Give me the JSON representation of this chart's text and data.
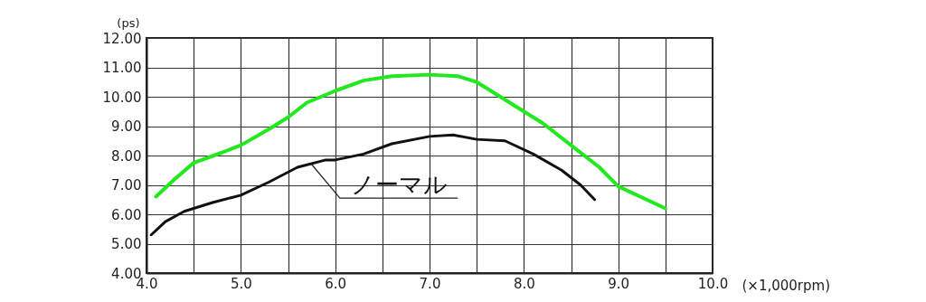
{
  "chart_data": {
    "type": "line",
    "xlabel": "(×1,000rpm)",
    "ylabel": "(ps)",
    "xlim": [
      4,
      10
    ],
    "ylim": [
      4,
      12
    ],
    "xticks": [
      {
        "value": 4,
        "label": "4.0"
      },
      {
        "value": 4.5,
        "label": null
      },
      {
        "value": 5,
        "label": "5.0"
      },
      {
        "value": 5.5,
        "label": null
      },
      {
        "value": 6,
        "label": "6.0"
      },
      {
        "value": 6.5,
        "label": null
      },
      {
        "value": 7,
        "label": "7.0"
      },
      {
        "value": 7.5,
        "label": null
      },
      {
        "value": 8,
        "label": "8.0"
      },
      {
        "value": 8.5,
        "label": null
      },
      {
        "value": 9,
        "label": "9.0"
      },
      {
        "value": 9.5,
        "label": null
      },
      {
        "value": 10,
        "label": "10.0"
      }
    ],
    "yticks": [
      {
        "value": 4,
        "label": "4.00"
      },
      {
        "value": 5,
        "label": "5.00"
      },
      {
        "value": 6,
        "label": "6.00"
      },
      {
        "value": 7,
        "label": "7.00"
      },
      {
        "value": 8,
        "label": "8.00"
      },
      {
        "value": 9,
        "label": "9.00"
      },
      {
        "value": 10,
        "label": "10.00"
      },
      {
        "value": 11,
        "label": "11.00"
      },
      {
        "value": 12,
        "label": "12.00"
      }
    ],
    "grid": true,
    "marker": "none",
    "line_style": "solid",
    "series": [
      {
        "color": "#22e81e",
        "x": [
          4.1,
          4.3,
          4.5,
          4.8,
          5.0,
          5.3,
          5.5,
          5.7,
          6.0,
          6.3,
          6.6,
          7.0,
          7.3,
          7.5,
          7.8,
          8.2,
          8.5,
          8.8,
          9.0,
          9.3,
          9.5
        ],
        "values": [
          6.6,
          7.2,
          7.75,
          8.1,
          8.35,
          8.9,
          9.3,
          9.8,
          10.2,
          10.55,
          10.7,
          10.75,
          10.7,
          10.5,
          9.9,
          9.1,
          8.35,
          7.6,
          6.95,
          6.5,
          6.2
        ]
      },
      {
        "color": "#111111",
        "x": [
          4.05,
          4.2,
          4.4,
          4.7,
          5.0,
          5.3,
          5.6,
          5.9,
          6.0,
          6.3,
          6.6,
          7.0,
          7.25,
          7.5,
          7.8,
          8.1,
          8.4,
          8.6,
          8.75
        ],
        "values": [
          5.3,
          5.75,
          6.1,
          6.4,
          6.65,
          7.1,
          7.6,
          7.85,
          7.85,
          8.05,
          8.4,
          8.65,
          8.7,
          8.55,
          8.5,
          8.05,
          7.5,
          7.0,
          6.5
        ]
      }
    ],
    "annotations": [
      {
        "text": "ノーマル",
        "x": 5.75,
        "y": 7.7
      }
    ]
  }
}
